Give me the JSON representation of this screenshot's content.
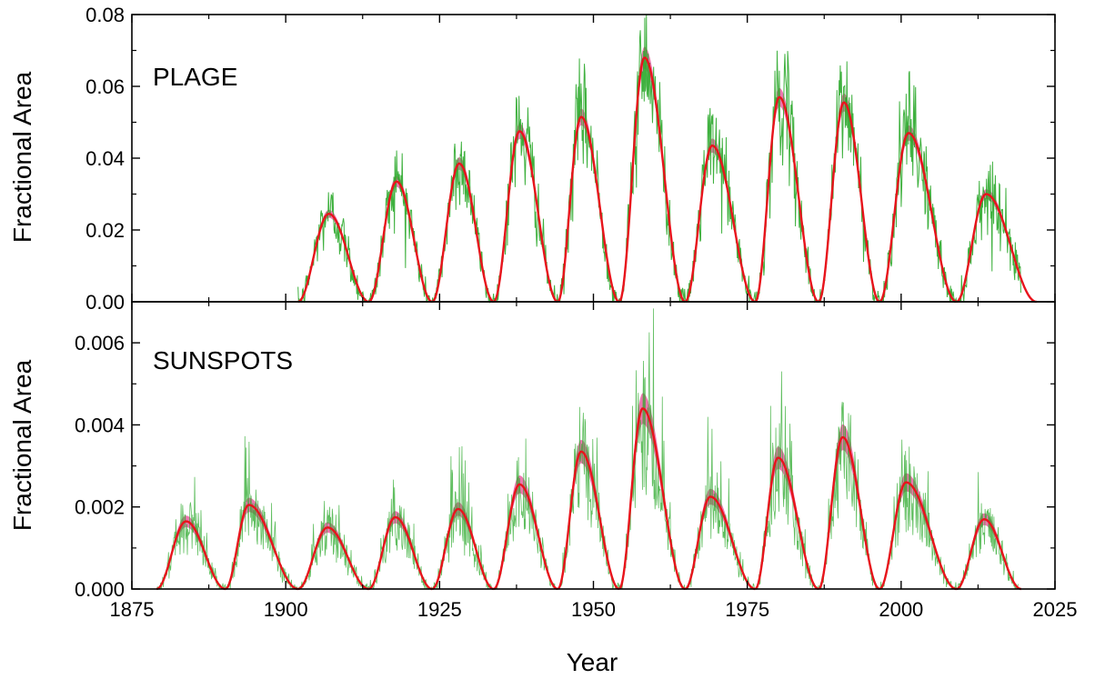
{
  "chart_data": [
    {
      "type": "line",
      "panel_label": "PLAGE",
      "ylabel": "Fractional Area",
      "xlabel": "",
      "xlim": [
        1875,
        2025
      ],
      "ylim": [
        0,
        0.08
      ],
      "yticks": [
        0.0,
        0.02,
        0.04,
        0.06,
        0.08
      ],
      "ytick_labels": [
        "0.00",
        "0.02",
        "0.04",
        "0.06",
        "0.08"
      ],
      "colors": {
        "fit": "#e8141c",
        "band": "#e8559b",
        "observed": "#2aa82a"
      },
      "cycles": [
        {
          "start": 1902.0,
          "peak_year": 1907.0,
          "end": 1913.5,
          "peak": 0.0245
        },
        {
          "start": 1913.5,
          "peak_year": 1918.0,
          "end": 1923.8,
          "peak": 0.0335
        },
        {
          "start": 1923.8,
          "peak_year": 1928.2,
          "end": 1933.8,
          "peak": 0.0385
        },
        {
          "start": 1933.8,
          "peak_year": 1938.0,
          "end": 1944.2,
          "peak": 0.0475
        },
        {
          "start": 1944.2,
          "peak_year": 1948.0,
          "end": 1954.2,
          "peak": 0.0515
        },
        {
          "start": 1954.2,
          "peak_year": 1958.3,
          "end": 1964.9,
          "peak": 0.068
        },
        {
          "start": 1964.9,
          "peak_year": 1969.3,
          "end": 1976.3,
          "peak": 0.0435
        },
        {
          "start": 1976.3,
          "peak_year": 1980.2,
          "end": 1986.6,
          "peak": 0.057
        },
        {
          "start": 1986.6,
          "peak_year": 1990.7,
          "end": 1996.5,
          "peak": 0.0555
        },
        {
          "start": 1996.5,
          "peak_year": 2001.2,
          "end": 2009.0,
          "peak": 0.047
        },
        {
          "start": 2009.0,
          "peak_year": 2013.8,
          "end": 2022.0,
          "peak": 0.03
        }
      ],
      "observed_range": [
        1902.0,
        2019.5
      ]
    },
    {
      "type": "line",
      "panel_label": "SUNSPOTS",
      "ylabel": "Fractional Area",
      "xlabel": "Year",
      "xlim": [
        1875,
        2025
      ],
      "ylim": [
        0,
        0.007
      ],
      "yticks": [
        0.0,
        0.002,
        0.004,
        0.006
      ],
      "ytick_labels": [
        "0.000",
        "0.002",
        "0.004",
        "0.006"
      ],
      "xticks": [
        1875,
        1900,
        1925,
        1950,
        1975,
        2000,
        2025
      ],
      "xtick_labels": [
        "1875",
        "1900",
        "1925",
        "1950",
        "1975",
        "2000",
        "2025"
      ],
      "colors": {
        "fit": "#e8141c",
        "band": "#e8559b",
        "observed": "#2aa82a"
      },
      "cycles": [
        {
          "start": 1879.0,
          "peak_year": 1883.8,
          "end": 1890.2,
          "peak": 0.00165
        },
        {
          "start": 1890.2,
          "peak_year": 1894.0,
          "end": 1902.0,
          "peak": 0.00205
        },
        {
          "start": 1902.0,
          "peak_year": 1906.8,
          "end": 1913.5,
          "peak": 0.0015
        },
        {
          "start": 1913.5,
          "peak_year": 1917.8,
          "end": 1923.8,
          "peak": 0.00175
        },
        {
          "start": 1923.8,
          "peak_year": 1928.0,
          "end": 1933.8,
          "peak": 0.00195
        },
        {
          "start": 1933.8,
          "peak_year": 1938.0,
          "end": 1944.2,
          "peak": 0.00255
        },
        {
          "start": 1944.2,
          "peak_year": 1948.0,
          "end": 1954.2,
          "peak": 0.00335
        },
        {
          "start": 1954.2,
          "peak_year": 1958.0,
          "end": 1964.9,
          "peak": 0.0044
        },
        {
          "start": 1964.9,
          "peak_year": 1969.0,
          "end": 1976.3,
          "peak": 0.00225
        },
        {
          "start": 1976.3,
          "peak_year": 1980.0,
          "end": 1986.6,
          "peak": 0.0032
        },
        {
          "start": 1986.6,
          "peak_year": 1990.5,
          "end": 1996.5,
          "peak": 0.0037
        },
        {
          "start": 1996.5,
          "peak_year": 2000.8,
          "end": 2009.0,
          "peak": 0.0026
        },
        {
          "start": 2009.0,
          "peak_year": 2013.5,
          "end": 2019.5,
          "peak": 0.0017
        }
      ],
      "observed_range": [
        1879.0,
        2019.0
      ]
    }
  ]
}
